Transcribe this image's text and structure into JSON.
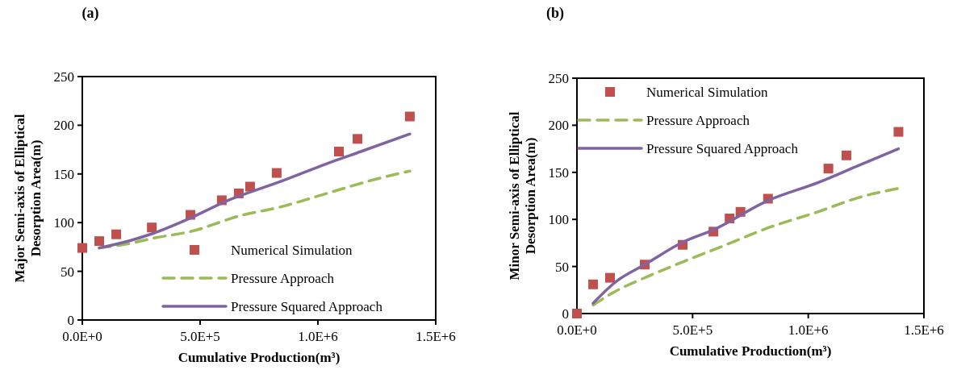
{
  "chart_data": [
    {
      "type": "line",
      "title": "(a)",
      "xlabel": "Cumulative Production(m³)",
      "ylabel": "Major Semi-axis of Elliptical\nDesorption Area(m)",
      "xlim": [
        0,
        1500000
      ],
      "xticks": [
        {
          "value": 0,
          "label": "0.0E+0"
        },
        {
          "value": 500000,
          "label": "5.0E+5"
        },
        {
          "value": 1000000,
          "label": "1.0E+6"
        },
        {
          "value": 1500000,
          "label": "1.5E+6"
        }
      ],
      "ylim": [
        0,
        250
      ],
      "yticks": [
        0,
        50,
        100,
        150,
        200,
        250
      ],
      "grid": false,
      "legend": "bottom right",
      "series": [
        {
          "name": "Numerical Simulation",
          "type": "scatter",
          "marker": "square",
          "color": "#c0504d",
          "x": [
            0,
            72000,
            144000,
            295000,
            459000,
            592000,
            664000,
            712000,
            825000,
            1089000,
            1168000,
            1390000
          ],
          "values": [
            74,
            81,
            88,
            95,
            108,
            123,
            130,
            137,
            151,
            173,
            186,
            209
          ]
        },
        {
          "name": "Pressure Approach",
          "line_style": "dashed",
          "color": "#9bbb59",
          "x": [
            72000,
            209000,
            301000,
            462000,
            668000,
            839000,
            1065000,
            1236000,
            1390000
          ],
          "values": [
            74,
            79,
            84,
            91,
            107,
            116,
            132,
            144,
            153
          ]
        },
        {
          "name": "Pressure Squared Approach",
          "line_style": "solid",
          "color": "#8064a2",
          "x": [
            72000,
            209000,
            301000,
            462000,
            610000,
            839000,
            1065000,
            1182000,
            1390000
          ],
          "values": [
            74,
            82,
            89,
            105,
            122,
            142,
            163,
            173,
            191
          ]
        }
      ]
    },
    {
      "type": "line",
      "title": "(b)",
      "xlabel": "Cumulative Production(m³)",
      "ylabel": "Minor Semi-axis of Elliptical\nDesorption Area(m)",
      "xlim": [
        0,
        1500000
      ],
      "xticks": [
        {
          "value": 0,
          "label": "0.0E+0"
        },
        {
          "value": 500000,
          "label": "5.0E+5"
        },
        {
          "value": 1000000,
          "label": "1.0E+6"
        },
        {
          "value": 1500000,
          "label": "1.5E+6"
        }
      ],
      "ylim": [
        0,
        250
      ],
      "yticks": [
        0,
        50,
        100,
        150,
        200,
        250
      ],
      "grid": false,
      "legend": "top left",
      "series": [
        {
          "name": "Numerical Simulation",
          "type": "scatter",
          "marker": "square",
          "color": "#c0504d",
          "x": [
            0,
            70000,
            143000,
            293000,
            457000,
            590000,
            660000,
            707000,
            826000,
            1087000,
            1165000,
            1390000
          ],
          "values": [
            0,
            31,
            38,
            52,
            73,
            87,
            101,
            108,
            122,
            154,
            168,
            193
          ]
        },
        {
          "name": "Pressure Approach",
          "line_style": "dashed",
          "color": "#9bbb59",
          "x": [
            70000,
            169000,
            293000,
            459000,
            634000,
            826000,
            1041000,
            1215000,
            1390000
          ],
          "values": [
            9,
            24,
            38,
            55,
            72,
            91,
            108,
            123,
            133
          ]
        },
        {
          "name": "Pressure Squared Approach",
          "line_style": "solid",
          "color": "#8064a2",
          "x": [
            70000,
            169000,
            293000,
            459000,
            590000,
            826000,
            1041000,
            1215000,
            1390000
          ],
          "values": [
            11,
            34,
            52,
            76,
            89,
            120,
            139,
            157,
            175
          ]
        }
      ]
    }
  ]
}
